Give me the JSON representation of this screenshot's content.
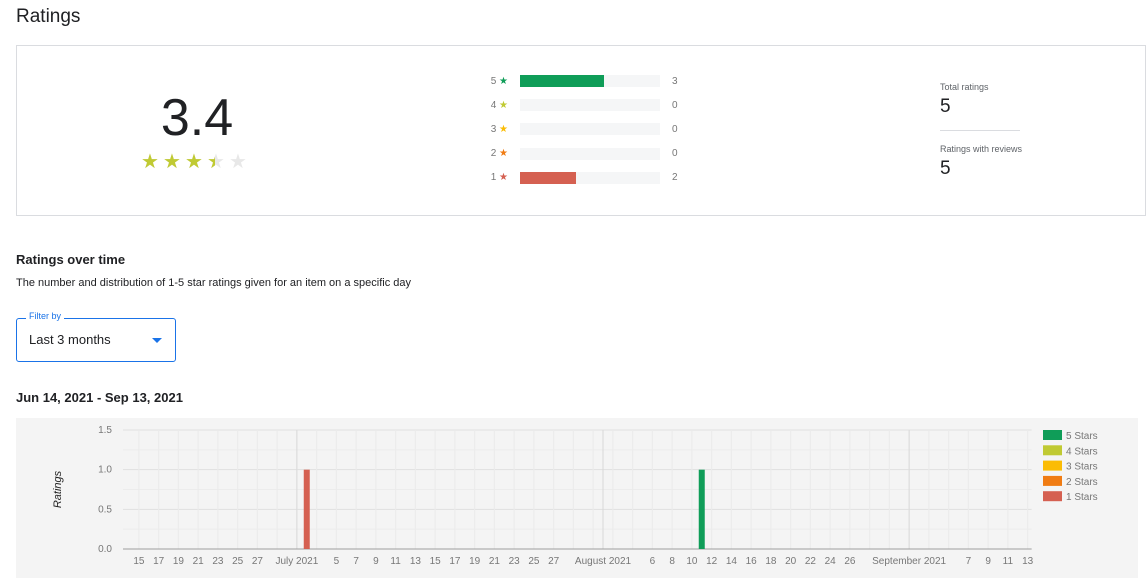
{
  "page_title": "Ratings",
  "summary": {
    "average": "3.4",
    "average_value": 3.4,
    "star_color": "#c0ca33",
    "distribution": [
      {
        "label": "5",
        "count": "3",
        "value": 3,
        "color": "#0f9d58"
      },
      {
        "label": "4",
        "count": "0",
        "value": 0,
        "color": "#c0ca33"
      },
      {
        "label": "3",
        "count": "0",
        "value": 0,
        "color": "#fbbc04"
      },
      {
        "label": "2",
        "count": "0",
        "value": 0,
        "color": "#f07c13"
      },
      {
        "label": "1",
        "count": "2",
        "value": 2,
        "color": "#d56051"
      }
    ],
    "total_label": "Total ratings",
    "total_value": "5",
    "reviews_label": "Ratings with reviews",
    "reviews_value": "5"
  },
  "over_time": {
    "title": "Ratings over time",
    "description": "The number and distribution of 1-5 star ratings given for an item on a specific day",
    "filter_label": "Filter by",
    "filter_value": "Last 3 months",
    "date_range": "Jun 14, 2021 - Sep 13, 2021"
  },
  "chart_data": {
    "type": "bar",
    "stacked": true,
    "ylabel": "Ratings",
    "xlabel": "",
    "ylim": [
      0,
      1.5
    ],
    "yticks": [
      "0.0",
      "0.5",
      "1.0",
      "1.5"
    ],
    "xlim": [
      "2021-06-14",
      "2021-09-13"
    ],
    "xticks": [
      {
        "date": "2021-06-15",
        "label": "15"
      },
      {
        "date": "2021-06-17",
        "label": "17"
      },
      {
        "date": "2021-06-19",
        "label": "19"
      },
      {
        "date": "2021-06-21",
        "label": "21"
      },
      {
        "date": "2021-06-23",
        "label": "23"
      },
      {
        "date": "2021-06-25",
        "label": "25"
      },
      {
        "date": "2021-06-27",
        "label": "27"
      },
      {
        "date": "2021-07-01",
        "label": "July 2021"
      },
      {
        "date": "2021-07-05",
        "label": "5"
      },
      {
        "date": "2021-07-07",
        "label": "7"
      },
      {
        "date": "2021-07-09",
        "label": "9"
      },
      {
        "date": "2021-07-11",
        "label": "11"
      },
      {
        "date": "2021-07-13",
        "label": "13"
      },
      {
        "date": "2021-07-15",
        "label": "15"
      },
      {
        "date": "2021-07-17",
        "label": "17"
      },
      {
        "date": "2021-07-19",
        "label": "19"
      },
      {
        "date": "2021-07-21",
        "label": "21"
      },
      {
        "date": "2021-07-23",
        "label": "23"
      },
      {
        "date": "2021-07-25",
        "label": "25"
      },
      {
        "date": "2021-07-27",
        "label": "27"
      },
      {
        "date": "2021-08-01",
        "label": "August 2021"
      },
      {
        "date": "2021-08-06",
        "label": "6"
      },
      {
        "date": "2021-08-08",
        "label": "8"
      },
      {
        "date": "2021-08-10",
        "label": "10"
      },
      {
        "date": "2021-08-12",
        "label": "12"
      },
      {
        "date": "2021-08-14",
        "label": "14"
      },
      {
        "date": "2021-08-16",
        "label": "16"
      },
      {
        "date": "2021-08-18",
        "label": "18"
      },
      {
        "date": "2021-08-20",
        "label": "20"
      },
      {
        "date": "2021-08-22",
        "label": "22"
      },
      {
        "date": "2021-08-24",
        "label": "24"
      },
      {
        "date": "2021-08-26",
        "label": "26"
      },
      {
        "date": "2021-09-01",
        "label": "September 2021"
      },
      {
        "date": "2021-09-07",
        "label": "7"
      },
      {
        "date": "2021-09-09",
        "label": "9"
      },
      {
        "date": "2021-09-11",
        "label": "11"
      },
      {
        "date": "2021-09-13",
        "label": "13"
      }
    ],
    "series": [
      {
        "name": "5 Stars",
        "color": "#0f9d58",
        "points": [
          {
            "date": "2021-08-11",
            "value": 1
          }
        ]
      },
      {
        "name": "4 Stars",
        "color": "#c0ca33",
        "points": []
      },
      {
        "name": "3 Stars",
        "color": "#fbbc04",
        "points": []
      },
      {
        "name": "2 Stars",
        "color": "#f07c13",
        "points": []
      },
      {
        "name": "1 Stars",
        "color": "#d56051",
        "points": [
          {
            "date": "2021-07-02",
            "value": 1
          }
        ]
      }
    ],
    "legend": "right",
    "grid": true
  }
}
